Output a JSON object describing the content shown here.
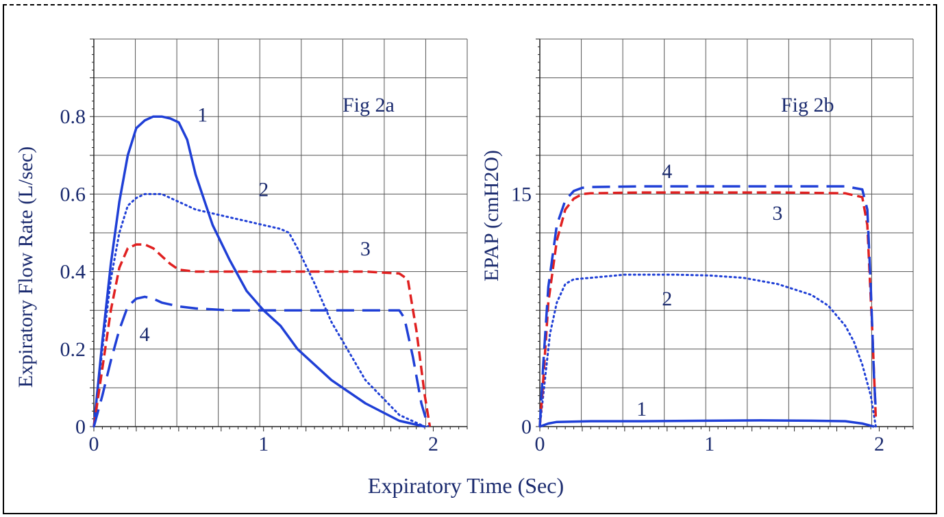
{
  "shared_xlabel": "Expiratory Time (Sec)",
  "colors": {
    "blue": "#1f3fd6",
    "red": "#e02020",
    "text": "#1a2a6e",
    "grid": "#555555"
  },
  "chart_data": [
    {
      "type": "line",
      "title": "Fig 2a",
      "xlabel": "Expiratory Time (Sec)",
      "ylabel": "Expiratory Flow Rate (L/sec)",
      "xlim": [
        0,
        2.2
      ],
      "ylim": [
        0,
        1.0
      ],
      "xticks": [
        0,
        1,
        2
      ],
      "yticks": [
        0,
        0.2,
        0.4,
        0.6,
        0.8
      ],
      "ytick_labels": [
        "0",
        "0.2",
        "0.4",
        "0.6",
        "0.8"
      ],
      "grid": true,
      "series": [
        {
          "name": "1",
          "color": "#1f3fd6",
          "dash": "solid",
          "x": [
            0,
            0.05,
            0.1,
            0.15,
            0.2,
            0.25,
            0.3,
            0.35,
            0.4,
            0.45,
            0.5,
            0.55,
            0.6,
            0.7,
            0.8,
            0.9,
            1.0,
            1.1,
            1.2,
            1.4,
            1.6,
            1.8,
            1.95
          ],
          "y": [
            0,
            0.22,
            0.42,
            0.58,
            0.7,
            0.77,
            0.79,
            0.8,
            0.8,
            0.795,
            0.785,
            0.74,
            0.65,
            0.52,
            0.43,
            0.35,
            0.3,
            0.26,
            0.2,
            0.12,
            0.06,
            0.015,
            0
          ]
        },
        {
          "name": "2",
          "color": "#1f3fd6",
          "dash": "dotted",
          "x": [
            0,
            0.05,
            0.1,
            0.15,
            0.2,
            0.25,
            0.3,
            0.35,
            0.4,
            0.5,
            0.6,
            0.7,
            0.8,
            0.9,
            1.0,
            1.1,
            1.15,
            1.2,
            1.3,
            1.4,
            1.6,
            1.8,
            1.95
          ],
          "y": [
            0,
            0.2,
            0.38,
            0.5,
            0.57,
            0.59,
            0.6,
            0.6,
            0.6,
            0.58,
            0.56,
            0.55,
            0.54,
            0.53,
            0.52,
            0.51,
            0.5,
            0.46,
            0.37,
            0.27,
            0.12,
            0.03,
            0
          ]
        },
        {
          "name": "3",
          "color": "#e02020",
          "dash": "dashed",
          "x": [
            0,
            0.05,
            0.1,
            0.15,
            0.2,
            0.25,
            0.3,
            0.35,
            0.4,
            0.45,
            0.5,
            0.6,
            0.7,
            0.8,
            1.0,
            1.2,
            1.4,
            1.6,
            1.8,
            1.85,
            1.9,
            1.95,
            1.98
          ],
          "y": [
            0,
            0.15,
            0.3,
            0.41,
            0.46,
            0.47,
            0.47,
            0.46,
            0.44,
            0.42,
            0.405,
            0.4,
            0.4,
            0.4,
            0.4,
            0.4,
            0.4,
            0.4,
            0.395,
            0.38,
            0.25,
            0.08,
            0
          ]
        },
        {
          "name": "4",
          "color": "#1f3fd6",
          "dash": "longdash",
          "x": [
            0,
            0.05,
            0.1,
            0.15,
            0.2,
            0.25,
            0.3,
            0.35,
            0.4,
            0.5,
            0.6,
            0.8,
            1.0,
            1.2,
            1.4,
            1.6,
            1.8,
            1.83,
            1.88,
            1.93,
            1.97
          ],
          "y": [
            0,
            0.08,
            0.17,
            0.25,
            0.31,
            0.33,
            0.335,
            0.33,
            0.32,
            0.31,
            0.305,
            0.3,
            0.3,
            0.3,
            0.3,
            0.3,
            0.3,
            0.28,
            0.18,
            0.06,
            0
          ]
        }
      ],
      "annotations": [
        "1",
        "2",
        "3",
        "4"
      ]
    },
    {
      "type": "line",
      "title": "Fig 2b",
      "xlabel": "Expiratory Time (Sec)",
      "ylabel": "EPAP (cmH2O)",
      "xlim": [
        0,
        2.2
      ],
      "ylim": [
        0,
        25
      ],
      "xticks": [
        0,
        1,
        2
      ],
      "yticks": [
        0,
        15
      ],
      "ytick_labels": [
        "0",
        "15"
      ],
      "grid": true,
      "series": [
        {
          "name": "1",
          "color": "#1f3fd6",
          "dash": "solid",
          "x": [
            0,
            0.05,
            0.1,
            0.3,
            0.6,
            1.0,
            1.3,
            1.6,
            1.8,
            1.9,
            1.97
          ],
          "y": [
            0,
            0.2,
            0.3,
            0.35,
            0.35,
            0.38,
            0.4,
            0.38,
            0.35,
            0.2,
            0
          ]
        },
        {
          "name": "2",
          "color": "#1f3fd6",
          "dash": "dotted",
          "x": [
            0,
            0.03,
            0.06,
            0.1,
            0.15,
            0.2,
            0.3,
            0.5,
            0.8,
            1.0,
            1.2,
            1.4,
            1.6,
            1.7,
            1.8,
            1.85,
            1.9,
            1.95,
            1.98
          ],
          "y": [
            0,
            3,
            6,
            8,
            9.2,
            9.5,
            9.6,
            9.8,
            9.8,
            9.75,
            9.6,
            9.2,
            8.5,
            7.8,
            6.5,
            5.5,
            4,
            2,
            0
          ]
        },
        {
          "name": "3",
          "color": "#e02020",
          "dash": "dashed",
          "x": [
            0,
            0.02,
            0.05,
            0.1,
            0.15,
            0.2,
            0.25,
            0.3,
            0.6,
            1.0,
            1.4,
            1.8,
            1.9,
            1.93,
            1.96,
            1.98
          ],
          "y": [
            0,
            3,
            8,
            12,
            14,
            14.7,
            15,
            15.05,
            15.1,
            15.1,
            15.1,
            15.05,
            14.8,
            13,
            6,
            0.5
          ]
        },
        {
          "name": "4",
          "color": "#1f3fd6",
          "dash": "longdash",
          "x": [
            0,
            0.02,
            0.05,
            0.1,
            0.15,
            0.2,
            0.25,
            0.3,
            0.6,
            1.0,
            1.4,
            1.8,
            1.9,
            1.93,
            1.95,
            1.97,
            1.98
          ],
          "y": [
            0,
            4,
            9,
            13,
            14.6,
            15.2,
            15.4,
            15.45,
            15.5,
            15.5,
            15.5,
            15.5,
            15.3,
            14,
            9,
            3,
            1
          ]
        }
      ],
      "annotations": [
        "1",
        "2",
        "3",
        "4"
      ]
    }
  ]
}
